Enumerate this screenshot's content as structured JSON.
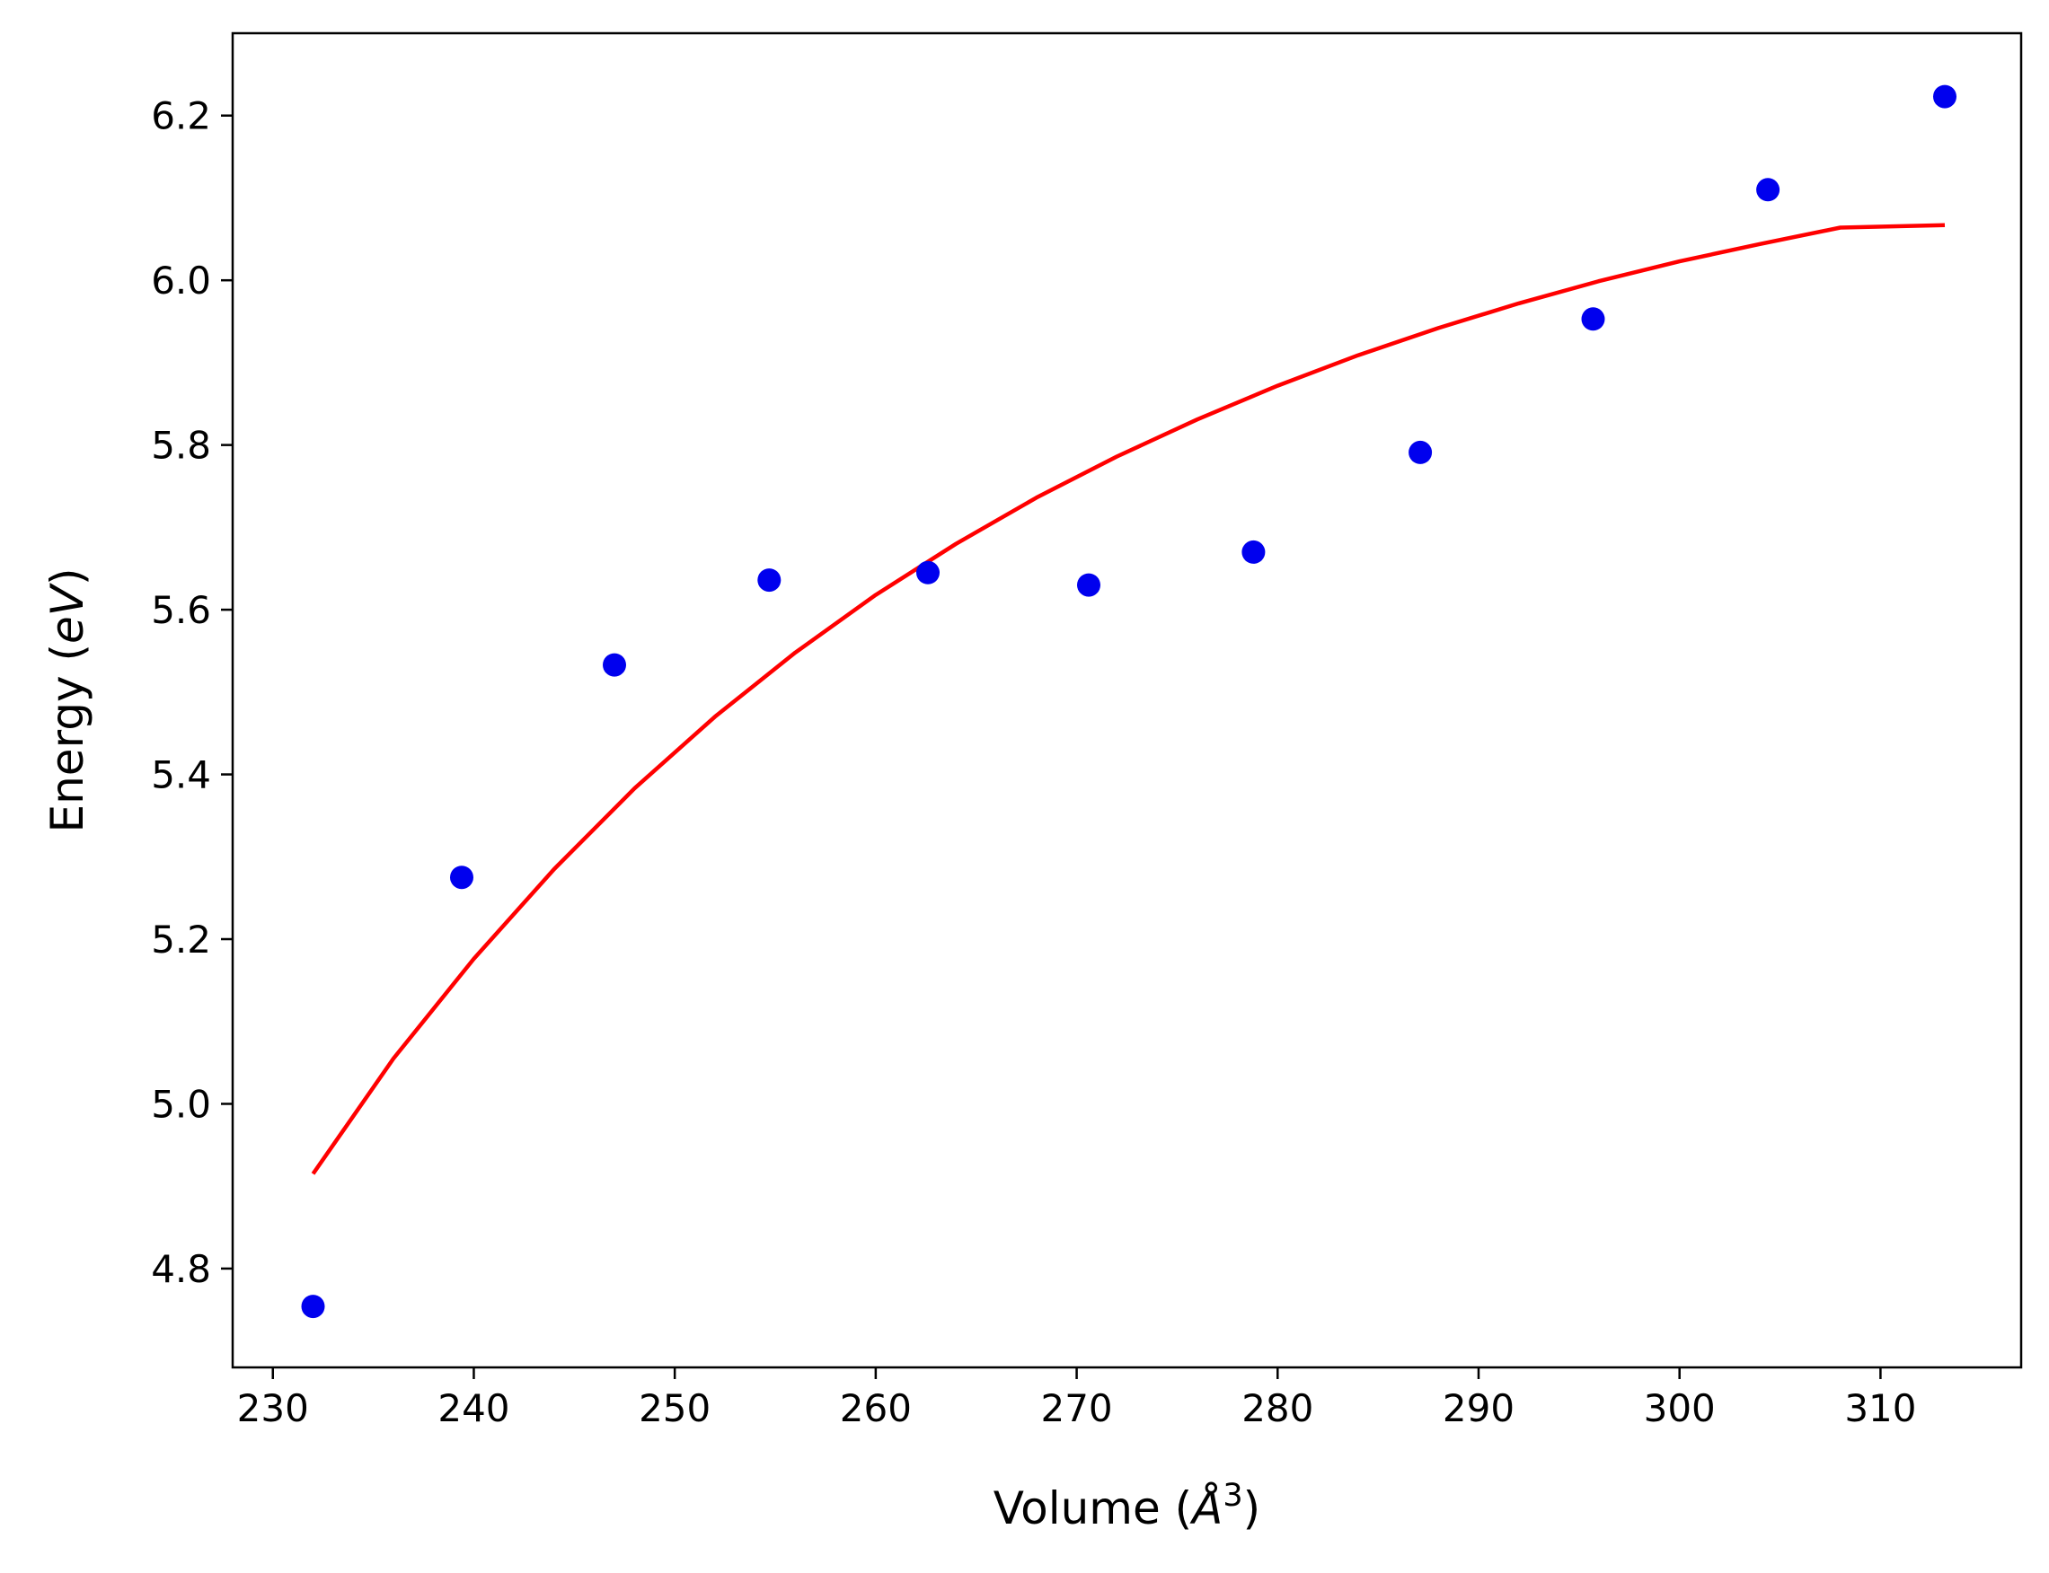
{
  "chart_data": {
    "type": "scatter",
    "xlabel": "Volume (",
    "xlabel_unit": "Å",
    "xlabel_exp": "3",
    "xlabel_close": ")",
    "ylabel": "Energy (",
    "ylabel_unit": "eV",
    "ylabel_close": ")",
    "xlim": [
      228,
      317
    ],
    "ylim": [
      4.68,
      6.3
    ],
    "xticks": [
      230,
      240,
      250,
      260,
      270,
      280,
      290,
      300,
      310
    ],
    "xtick_labels": [
      "230",
      "240",
      "250",
      "260",
      "270",
      "280",
      "290",
      "300",
      "310"
    ],
    "yticks": [
      4.8,
      5.0,
      5.2,
      5.4,
      5.6,
      5.8,
      6.0,
      6.2
    ],
    "ytick_labels": [
      "4.8",
      "5.0",
      "5.2",
      "5.4",
      "5.6",
      "5.8",
      "6.0",
      "6.2"
    ],
    "grid": false,
    "series": [
      {
        "kind": "scatter",
        "color": "#0000ee",
        "x": [
          232.0,
          239.4,
          247.0,
          254.7,
          262.6,
          270.6,
          278.8,
          287.1,
          295.7,
          304.4,
          313.2
        ],
        "y": [
          4.754,
          5.275,
          5.533,
          5.636,
          5.645,
          5.63,
          5.67,
          5.791,
          5.953,
          6.11,
          6.223
        ]
      },
      {
        "kind": "line",
        "color": "#ff0000",
        "x": [
          232.0,
          236.0,
          240.0,
          244.0,
          248.0,
          252.0,
          256.0,
          260.0,
          264.0,
          268.0,
          272.0,
          276.0,
          280.0,
          284.0,
          288.0,
          292.0,
          296.0,
          300.0,
          304.0,
          308.0,
          313.2
        ],
        "y": [
          4.915,
          5.055,
          5.176,
          5.285,
          5.383,
          5.47,
          5.548,
          5.618,
          5.68,
          5.736,
          5.786,
          5.831,
          5.872,
          5.909,
          5.942,
          5.972,
          5.999,
          6.023,
          6.044,
          6.064,
          6.067
        ]
      }
    ]
  }
}
